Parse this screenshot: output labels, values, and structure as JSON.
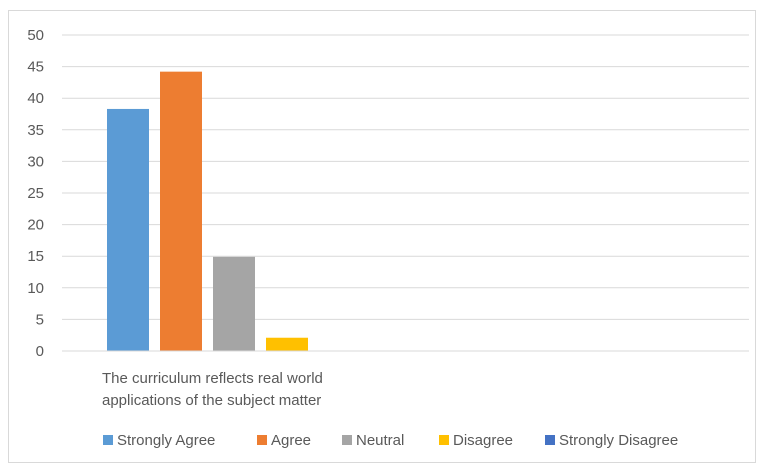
{
  "chart_data": {
    "type": "bar",
    "categories": [
      "The curriculum reflects real world applications of the subject matter"
    ],
    "category_label_lines": [
      "The curriculum reflects real world",
      "applications of the subject matter"
    ],
    "series": [
      {
        "name": "Strongly Agree",
        "values": [
          38.3
        ],
        "color": "#5b9bd5"
      },
      {
        "name": "Agree",
        "values": [
          44.2
        ],
        "color": "#ed7d31"
      },
      {
        "name": "Neutral",
        "values": [
          14.9
        ],
        "color": "#a5a5a5"
      },
      {
        "name": "Disagree",
        "values": [
          2.1
        ],
        "color": "#ffc000"
      },
      {
        "name": "Strongly Disagree",
        "values": [
          0
        ],
        "color": "#4472c4"
      }
    ],
    "title": "",
    "xlabel": "",
    "ylabel": "",
    "ylim": [
      0,
      50
    ],
    "yticks": [
      "0",
      "5",
      "10",
      "15",
      "20",
      "25",
      "30",
      "35",
      "40",
      "45",
      "50"
    ],
    "grid": true,
    "legend_position": "bottom"
  }
}
